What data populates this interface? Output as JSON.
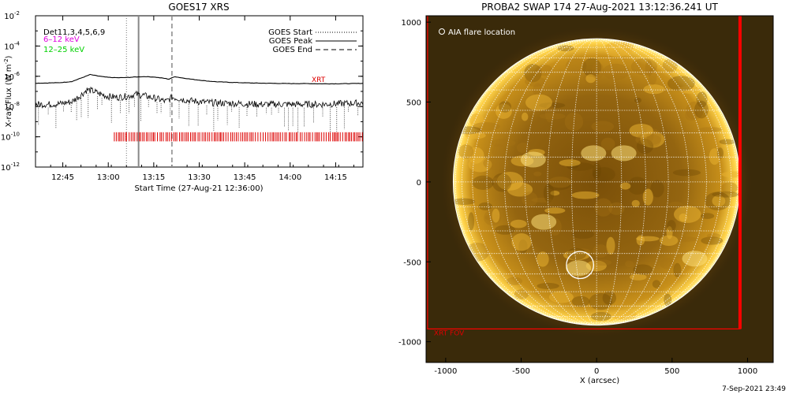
{
  "chart_data": [
    {
      "type": "line",
      "title": "GOES17 XRS",
      "xlabel": "Start Time (27-Aug-21 12:36:00)",
      "ylabel": "X-ray Flux (W m",
      "ylabel_exp": "-2",
      "ylabel_close": ")",
      "y_scale": "log",
      "ylim": [
        1e-12,
        0.01
      ],
      "xlim": [
        "12:36",
        "14:24"
      ],
      "x_ticks": [
        "12:45",
        "13:00",
        "13:15",
        "13:30",
        "13:45",
        "14:00",
        "14:15"
      ],
      "y_ticks": [
        {
          "base": "10",
          "exp": "-2",
          "value": 0.01
        },
        {
          "base": "10",
          "exp": "-4",
          "value": 0.0001
        },
        {
          "base": "10",
          "exp": "-6",
          "value": 1e-06
        },
        {
          "base": "10",
          "exp": "-8",
          "value": 1e-08
        },
        {
          "base": "10",
          "exp": "-10",
          "value": 1e-10
        },
        {
          "base": "10",
          "exp": "-12",
          "value": 1e-12
        }
      ],
      "detector_label": "Det11,3,4,5,6,9",
      "energy_bands": [
        {
          "label": "6–12 keV",
          "color": "#e000e0"
        },
        {
          "label": "12–25 keV",
          "color": "#00d000"
        }
      ],
      "legend": [
        {
          "label": "GOES Start",
          "style": "dotted"
        },
        {
          "label": "GOES Peak",
          "style": "solid"
        },
        {
          "label": "GOES End",
          "style": "dashed"
        }
      ],
      "legend_position": "top-right",
      "event_markers": {
        "goes_start": "13:06",
        "goes_peak": "13:10",
        "goes_end": "13:21"
      },
      "xrt_label": "XRT",
      "xrt_color": "#dd0000",
      "xrt_coverage": [
        "13:02",
        "14:24"
      ],
      "series": [
        {
          "name": "long",
          "time": [
            "12:36",
            "12:40",
            "12:44",
            "12:48",
            "12:52",
            "12:54",
            "12:56",
            "12:58",
            "13:00",
            "13:03",
            "13:06",
            "13:09",
            "13:12",
            "13:15",
            "13:18",
            "13:20",
            "13:22",
            "13:24",
            "13:28",
            "13:32",
            "13:36",
            "13:40",
            "13:45",
            "13:50",
            "13:55",
            "14:00",
            "14:05",
            "14:10",
            "14:15",
            "14:20",
            "14:24"
          ],
          "flux": [
            3.5e-07,
            3.6e-07,
            3.8e-07,
            4.5e-07,
            9e-07,
            1.3e-06,
            1.1e-06,
            9.5e-07,
            8.5e-07,
            8e-07,
            8.3e-07,
            9e-07,
            9.5e-07,
            9e-07,
            7.5e-07,
            6.5e-07,
            9.5e-07,
            8e-07,
            6.2e-07,
            5e-07,
            4.3e-07,
            4e-07,
            3.7e-07,
            3.5e-07,
            3.4e-07,
            3.3e-07,
            3.3e-07,
            3.2e-07,
            3.2e-07,
            3.3e-07,
            3.4e-07
          ]
        },
        {
          "name": "short",
          "time": [
            "12:36",
            "12:40",
            "12:44",
            "12:48",
            "12:51",
            "12:53",
            "12:55",
            "12:57",
            "13:00",
            "13:03",
            "13:06",
            "13:09",
            "13:11",
            "13:14",
            "13:17",
            "13:19",
            "13:21",
            "13:23",
            "13:26",
            "13:30",
            "13:35",
            "13:40",
            "13:45",
            "13:50",
            "13:55",
            "14:00",
            "14:05",
            "14:10",
            "14:15",
            "14:20",
            "14:24"
          ],
          "flux": [
            1.2e-08,
            1.2e-08,
            1.3e-08,
            1.8e-08,
            5e-08,
            1.1e-07,
            9e-08,
            6e-08,
            4e-08,
            3.5e-08,
            4e-08,
            5.5e-08,
            5e-08,
            3.5e-08,
            2.5e-08,
            1.8e-08,
            3.5e-08,
            3e-08,
            2.2e-08,
            1.8e-08,
            1.5e-08,
            1.4e-08,
            1.3e-08,
            1.2e-08,
            1.2e-08,
            1.2e-08,
            1.2e-08,
            1.2e-08,
            1.3e-08,
            1.4e-08,
            1.5e-08
          ]
        }
      ]
    },
    {
      "type": "image",
      "title": "PROBA2 SWAP 174 27-Aug-2021 13:12:36.241 UT",
      "xlabel": "X (arcsec)",
      "xlim": [
        -1130,
        1170
      ],
      "ylim": [
        -1130,
        1040
      ],
      "x_ticks": [
        -1000,
        -500,
        0,
        500,
        1000
      ],
      "y_ticks": [
        1000,
        500,
        0,
        -500,
        -1000
      ],
      "solar_radius_arcsec": 950,
      "flare_marker_label": "AIA flare location",
      "flare_location": {
        "x": -110,
        "y": -520,
        "radius": 90
      },
      "xrt_fov_label": "XRT FOV",
      "xrt_fov": {
        "x0": -1120,
        "x1": 950,
        "y0": -920,
        "y1": 1070
      },
      "xrt_fov_color": "#ff0000",
      "grid_color": "#ffffff",
      "grid": true,
      "timestamp": "7-Sep-2021 23:49"
    }
  ]
}
